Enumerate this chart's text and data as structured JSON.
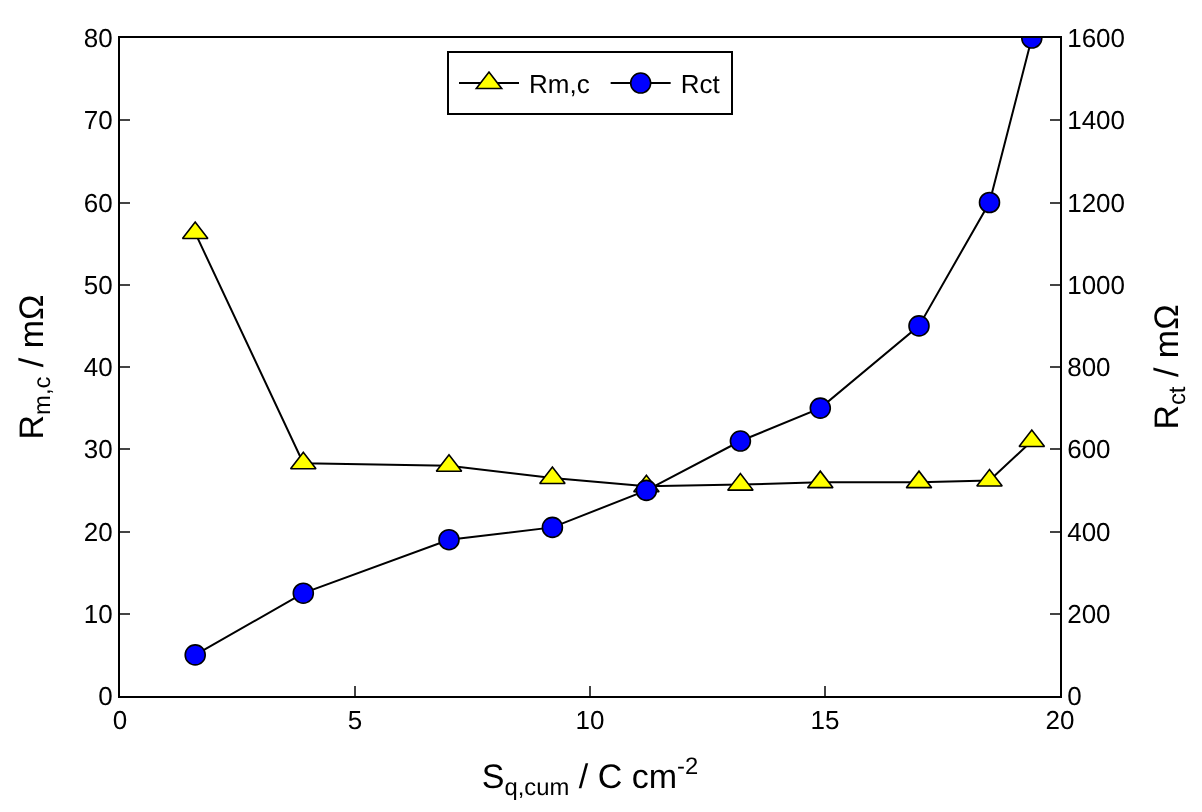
{
  "chart_data": {
    "type": "line",
    "xlabel": "S$_{q,cum}$ / C cm$^{-2}$",
    "ylabel": "R$_{m,c}$ / mΩ",
    "y2label": "R$_{ct}$ / mΩ",
    "x": [
      1.6,
      3.9,
      7.0,
      9.2,
      11.2,
      13.2,
      14.9,
      17.0,
      18.5,
      19.4
    ],
    "series": [
      {
        "name": "Rm,c",
        "color": "#ffff00",
        "marker": "triangle",
        "values": [
          56.3,
          28.3,
          28.0,
          26.5,
          25.5,
          25.7,
          26.0,
          26.0,
          26.2,
          31.0
        ]
      },
      {
        "name": "Rct",
        "color": "#0000ff",
        "marker": "circle",
        "axis": "y2",
        "values": [
          100,
          250,
          380,
          410,
          500,
          620,
          700,
          900,
          1200,
          1600
        ]
      }
    ],
    "xlim": [
      0,
      20
    ],
    "xticks": [
      0,
      5,
      10,
      15,
      20
    ],
    "ylim": [
      0,
      80
    ],
    "yticks": [
      0,
      10,
      20,
      30,
      40,
      50,
      60,
      70,
      80
    ],
    "y2lim": [
      0,
      1600
    ],
    "y2ticks": [
      0,
      200,
      400,
      600,
      800,
      1000,
      1200,
      1400,
      1600
    ],
    "legend": "top"
  }
}
